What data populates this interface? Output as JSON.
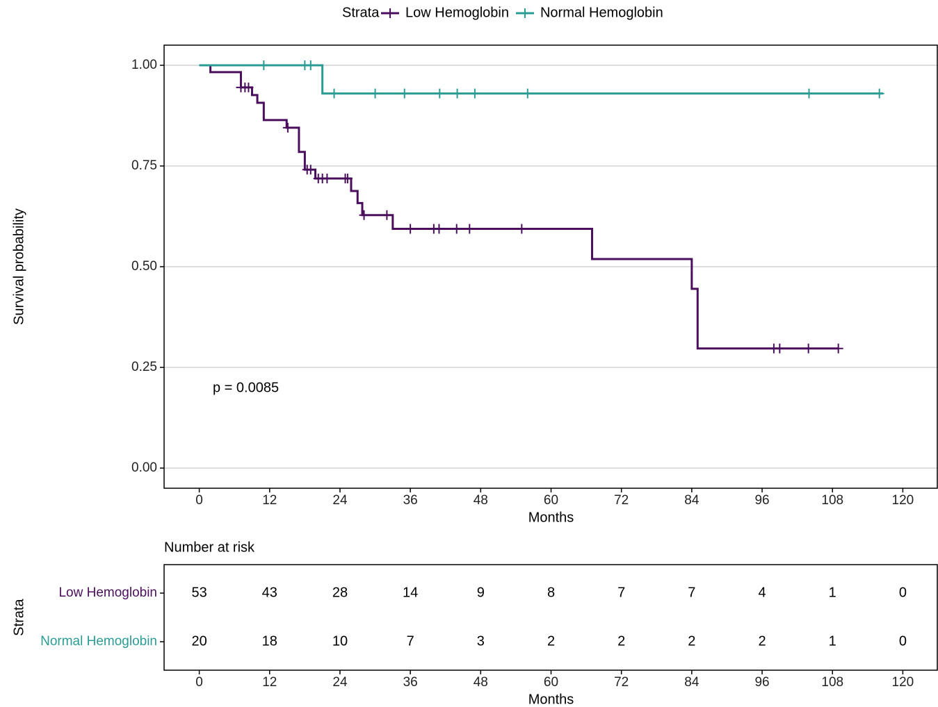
{
  "chart_data": [
    {
      "type": "km",
      "legend_title": "Strata",
      "ylabel": "Survival probability",
      "xlabel": "Months",
      "annotation": "p = 0.0085",
      "xlim": [
        -6,
        126
      ],
      "ylim": [
        -0.05,
        1.05
      ],
      "xticks": [
        0,
        12,
        24,
        36,
        48,
        60,
        72,
        84,
        96,
        108,
        120
      ],
      "yticks": [
        {
          "value": 0,
          "label": "0.00"
        },
        {
          "value": 0.25,
          "label": "0.25"
        },
        {
          "value": 0.5,
          "label": "0.50"
        },
        {
          "value": 0.75,
          "label": "0.75"
        },
        {
          "value": 1,
          "label": "1.00"
        }
      ],
      "grid": true,
      "series": [
        {
          "name": "Low Hemoglobin",
          "color": "#4a0f5c",
          "x": [
            0,
            1.9,
            7.1,
            9,
            9.9,
            11,
            14.9,
            17,
            18,
            19.8,
            25.9,
            27,
            27.8,
            33,
            67,
            84,
            85,
            109
          ],
          "values": [
            1,
            0.983,
            0.945,
            0.926,
            0.907,
            0.864,
            0.845,
            0.785,
            0.741,
            0.719,
            0.688,
            0.658,
            0.628,
            0.594,
            0.519,
            0.445,
            0.297,
            0.297
          ],
          "censor_x": [
            7.1,
            7.8,
            8.4,
            15.1,
            18.4,
            19,
            20.3,
            21,
            21.8,
            24.9,
            25.3,
            28.1,
            32,
            36,
            40,
            40.9,
            43.9,
            46.1,
            55,
            98,
            99,
            103.9,
            109
          ],
          "censor_values": [
            0.945,
            0.945,
            0.945,
            0.845,
            0.741,
            0.741,
            0.719,
            0.719,
            0.719,
            0.719,
            0.719,
            0.628,
            0.628,
            0.594,
            0.594,
            0.594,
            0.594,
            0.594,
            0.594,
            0.297,
            0.297,
            0.297,
            0.297
          ]
        },
        {
          "name": "Normal Hemoglobin",
          "color": "#2a9c93",
          "x": [
            0,
            21,
            116.6
          ],
          "values": [
            1,
            0.93,
            0.93
          ],
          "censor_x": [
            11,
            18,
            19,
            23,
            30,
            35,
            41,
            44,
            47,
            56,
            104,
            116
          ],
          "censor_values": [
            1,
            1,
            1,
            0.93,
            0.93,
            0.93,
            0.93,
            0.93,
            0.93,
            0.93,
            0.93,
            0.93
          ]
        }
      ]
    },
    {
      "type": "risk_table",
      "title": "Number at risk",
      "ylabel": "Strata",
      "xlabel": "Months",
      "xlim": [
        -6,
        126
      ],
      "x": [
        0,
        12,
        24,
        36,
        48,
        60,
        72,
        84,
        96,
        108,
        120
      ],
      "xticks": [
        0,
        12,
        24,
        36,
        48,
        60,
        72,
        84,
        96,
        108,
        120
      ],
      "series": [
        {
          "name": "Low Hemoglobin",
          "color": "#4a0f5c",
          "values": [
            53,
            43,
            28,
            14,
            9,
            8,
            7,
            7,
            4,
            1,
            0
          ]
        },
        {
          "name": "Normal Hemoglobin",
          "color": "#2a9c93",
          "values": [
            20,
            18,
            10,
            7,
            3,
            2,
            2,
            2,
            2,
            1,
            0
          ]
        }
      ]
    }
  ]
}
